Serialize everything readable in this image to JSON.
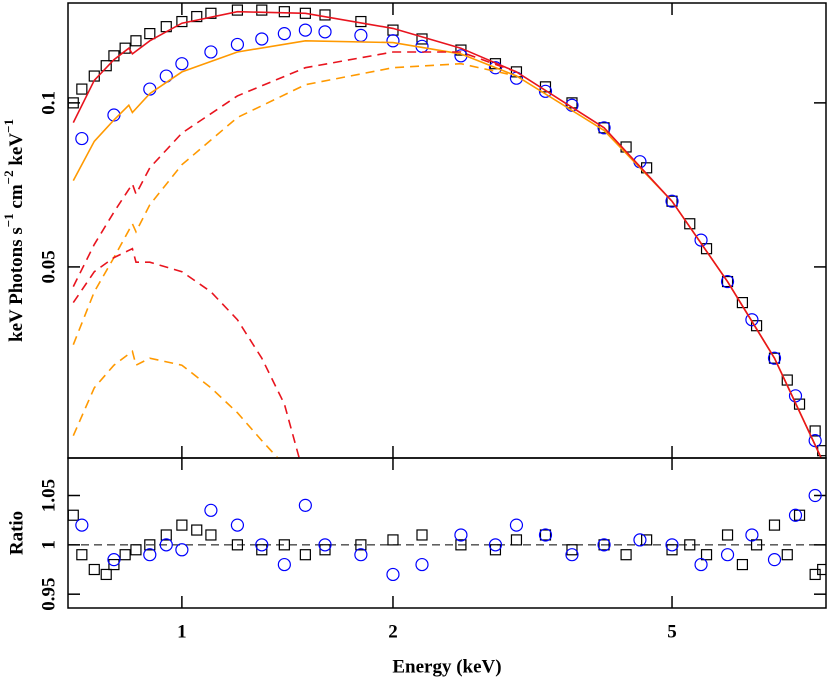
{
  "chart_data": [
    {
      "type": "scatter",
      "ylabel": [
        "keV Photons s",
        "−1",
        " cm",
        "−2",
        " keV",
        "−1"
      ],
      "xscale": "log",
      "yscale": "log",
      "xlim": [
        0.688,
        8.29
      ],
      "ylim": [
        0.0223,
        0.1525
      ],
      "xticks": [
        1,
        2,
        5
      ],
      "yticks": [
        0.05,
        0.1
      ],
      "series": [
        {
          "style": "square",
          "color": "#000000",
          "x": [
            0.7,
            0.72,
            0.75,
            0.78,
            0.8,
            0.83,
            0.86,
            0.9,
            0.95,
            1.0,
            1.05,
            1.1,
            1.2,
            1.3,
            1.4,
            1.5,
            1.6,
            1.8,
            2.0,
            2.2,
            2.5,
            2.8,
            3.0,
            3.3,
            3.6,
            4.0,
            4.3,
            4.6,
            5.0,
            5.3,
            5.6,
            6.0,
            6.3,
            6.6,
            7.0,
            7.3,
            7.6,
            8.0,
            8.2
          ],
          "values": [
            0.1,
            0.106,
            0.112,
            0.117,
            0.122,
            0.126,
            0.13,
            0.134,
            0.138,
            0.141,
            0.144,
            0.146,
            0.148,
            0.148,
            0.147,
            0.146,
            0.145,
            0.141,
            0.136,
            0.131,
            0.125,
            0.118,
            0.114,
            0.107,
            0.1,
            0.09,
            0.083,
            0.076,
            0.066,
            0.06,
            0.054,
            0.047,
            0.043,
            0.039,
            0.034,
            0.031,
            0.028,
            0.025,
            0.023
          ]
        },
        {
          "style": "circle",
          "color": "#0000ff",
          "x": [
            0.72,
            0.8,
            0.9,
            0.95,
            1.0,
            1.1,
            1.2,
            1.3,
            1.4,
            1.5,
            1.6,
            1.8,
            2.0,
            2.2,
            2.5,
            2.8,
            3.0,
            3.3,
            3.6,
            4.0,
            4.5,
            5.0,
            5.5,
            6.0,
            6.5,
            7.0,
            7.5,
            8.0
          ],
          "values": [
            0.086,
            0.095,
            0.106,
            0.112,
            0.118,
            0.124,
            0.128,
            0.131,
            0.134,
            0.136,
            0.135,
            0.133,
            0.13,
            0.127,
            0.122,
            0.116,
            0.111,
            0.105,
            0.099,
            0.09,
            0.078,
            0.066,
            0.056,
            0.047,
            0.04,
            0.034,
            0.029,
            0.024
          ]
        },
        {
          "style": "solid",
          "color": "#ff9900",
          "x": [
            0.7,
            0.75,
            0.8,
            0.84,
            0.85,
            0.9,
            1.0,
            1.2,
            1.5,
            2,
            2.5,
            3,
            4,
            5,
            6,
            7,
            8.2
          ],
          "values": [
            0.072,
            0.085,
            0.093,
            0.099,
            0.096,
            0.104,
            0.114,
            0.124,
            0.13,
            0.129,
            0.123,
            0.112,
            0.089,
            0.066,
            0.047,
            0.034,
            0.022
          ]
        },
        {
          "style": "solid",
          "color": "#e8141e",
          "x": [
            0.7,
            0.75,
            0.8,
            0.84,
            0.85,
            0.9,
            1.0,
            1.2,
            1.5,
            2,
            2.5,
            3,
            4,
            5,
            6,
            7,
            8.2
          ],
          "values": [
            0.092,
            0.11,
            0.12,
            0.126,
            0.123,
            0.13,
            0.14,
            0.147,
            0.146,
            0.137,
            0.126,
            0.114,
            0.09,
            0.066,
            0.047,
            0.034,
            0.022
          ]
        },
        {
          "style": "dashed",
          "color": "#e8141e",
          "x": [
            0.7,
            0.75,
            0.8,
            0.85,
            0.86,
            0.9,
            1.0,
            1.2,
            1.5,
            2,
            2.5,
            3
          ],
          "values": [
            0.046,
            0.055,
            0.063,
            0.071,
            0.068,
            0.076,
            0.088,
            0.103,
            0.116,
            0.124,
            0.124,
            0.114
          ]
        },
        {
          "style": "dashed",
          "color": "#ff9900",
          "x": [
            0.7,
            0.75,
            0.8,
            0.85,
            0.86,
            0.9,
            1.0,
            1.2,
            1.5,
            2,
            2.5,
            3
          ],
          "values": [
            0.036,
            0.045,
            0.052,
            0.06,
            0.058,
            0.065,
            0.077,
            0.094,
            0.108,
            0.116,
            0.118,
            0.112
          ]
        },
        {
          "style": "dashed",
          "color": "#e8141e",
          "x": [
            0.7,
            0.75,
            0.8,
            0.85,
            0.86,
            0.9,
            1.0,
            1.1,
            1.2,
            1.3,
            1.4,
            1.47
          ],
          "values": [
            0.043,
            0.049,
            0.052,
            0.054,
            0.051,
            0.051,
            0.049,
            0.045,
            0.04,
            0.034,
            0.028,
            0.0223
          ]
        },
        {
          "style": "dashed",
          "color": "#ff9900",
          "x": [
            0.7,
            0.75,
            0.8,
            0.85,
            0.86,
            0.9,
            1.0,
            1.1,
            1.2,
            1.3,
            1.37
          ],
          "values": [
            0.0245,
            0.03,
            0.033,
            0.035,
            0.033,
            0.034,
            0.033,
            0.03,
            0.027,
            0.024,
            0.0223
          ]
        }
      ]
    },
    {
      "type": "scatter",
      "ylabel": "Ratio",
      "xlabel": "Energy (keV)",
      "xscale": "log",
      "yscale": "linear",
      "xlim": [
        0.688,
        8.29
      ],
      "ylim": [
        0.936,
        1.088
      ],
      "xticks": [
        1,
        2,
        5
      ],
      "yticks": [
        0.95,
        1,
        1.05
      ],
      "refline": 1,
      "series": [
        {
          "style": "square",
          "color": "#000000",
          "x": [
            0.7,
            0.72,
            0.75,
            0.78,
            0.8,
            0.83,
            0.86,
            0.9,
            0.95,
            1.0,
            1.05,
            1.1,
            1.2,
            1.3,
            1.4,
            1.5,
            1.6,
            1.8,
            2.0,
            2.2,
            2.5,
            2.8,
            3.0,
            3.3,
            3.6,
            4.0,
            4.3,
            4.6,
            5.0,
            5.3,
            5.6,
            6.0,
            6.3,
            6.6,
            7.0,
            7.3,
            7.6,
            8.0,
            8.2
          ],
          "values": [
            1.03,
            0.99,
            0.975,
            0.97,
            0.98,
            0.99,
            0.995,
            1.0,
            1.01,
            1.02,
            1.015,
            1.01,
            1.0,
            0.995,
            1.0,
            0.99,
            0.995,
            1.0,
            1.005,
            1.01,
            1.0,
            0.995,
            1.005,
            1.01,
            0.995,
            1.0,
            0.99,
            1.005,
            0.995,
            1.0,
            0.99,
            1.01,
            0.98,
            1.0,
            1.02,
            0.99,
            1.03,
            0.97,
            0.975
          ]
        },
        {
          "style": "circle",
          "color": "#0000ff",
          "x": [
            0.72,
            0.8,
            0.9,
            0.95,
            1.0,
            1.1,
            1.2,
            1.3,
            1.4,
            1.5,
            1.6,
            1.8,
            2.0,
            2.2,
            2.5,
            2.8,
            3.0,
            3.3,
            3.6,
            4.0,
            4.5,
            5.0,
            5.5,
            6.0,
            6.5,
            7.0,
            7.5,
            8.0
          ],
          "values": [
            1.02,
            0.985,
            0.99,
            1.0,
            0.995,
            1.035,
            1.02,
            1.0,
            0.98,
            1.04,
            1.0,
            0.99,
            0.97,
            0.98,
            1.01,
            1.0,
            1.02,
            1.01,
            0.99,
            1.0,
            1.005,
            1.0,
            0.98,
            0.99,
            1.01,
            0.985,
            1.03,
            1.05
          ]
        }
      ]
    }
  ]
}
